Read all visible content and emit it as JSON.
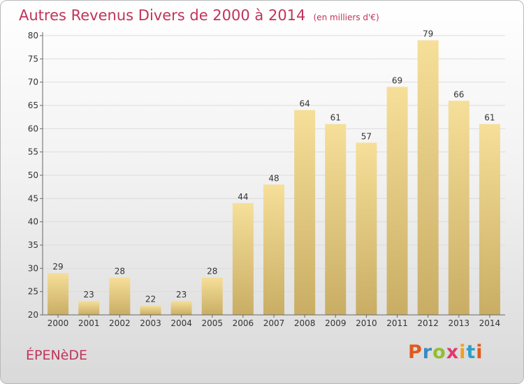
{
  "header": {
    "title": "Autres Revenus Divers de 2000 à 2014",
    "unit": "(en milliers d'€)"
  },
  "footer": {
    "commune": "ÉPENèDE",
    "brand": "Proxiti",
    "brand_colors": [
      "#e05a1e",
      "#3b88c4",
      "#8fbf2f",
      "#e03a6e",
      "#f0a020",
      "#2aa0c8",
      "#e05a1e"
    ]
  },
  "colors": {
    "bar_light": "#f6df99",
    "bar_dark": "#c9ad64",
    "title": "#c0345a"
  },
  "chart_data": {
    "type": "bar",
    "title": "Autres Revenus Divers de 2000 à 2014",
    "categories": [
      "2000",
      "2001",
      "2002",
      "2003",
      "2004",
      "2005",
      "2006",
      "2007",
      "2008",
      "2009",
      "2010",
      "2011",
      "2012",
      "2013",
      "2014"
    ],
    "values": [
      29,
      23,
      28,
      22,
      23,
      28,
      44,
      48,
      64,
      61,
      57,
      69,
      79,
      66,
      61
    ],
    "ylim": [
      20,
      80
    ],
    "yticks": [
      20,
      25,
      30,
      35,
      40,
      45,
      50,
      55,
      60,
      65,
      70,
      75,
      80
    ],
    "grid": true,
    "legend": "none"
  }
}
